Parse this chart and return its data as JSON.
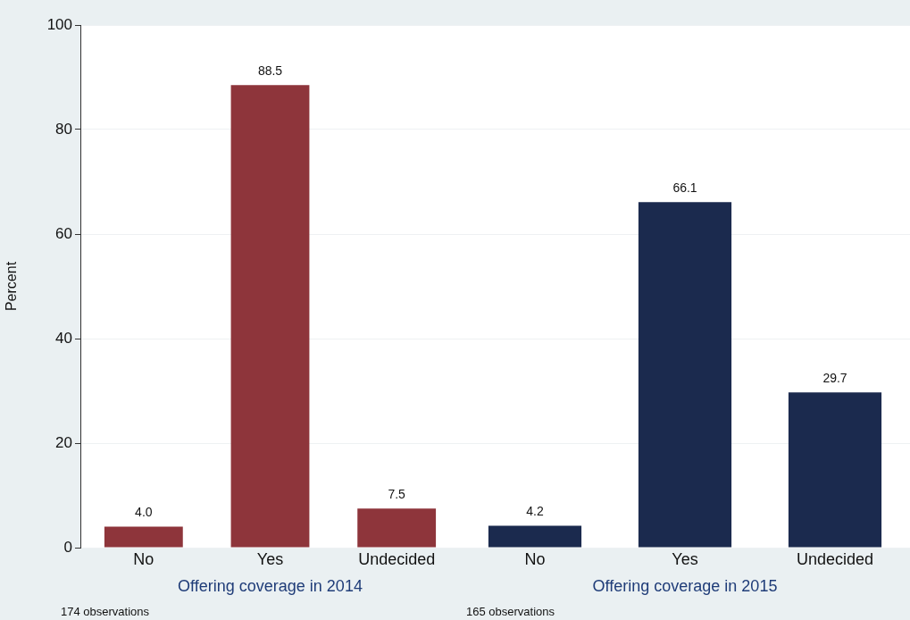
{
  "chart_data": [
    {
      "type": "bar",
      "categories": [
        "No",
        "Yes",
        "Undecided"
      ],
      "values": [
        4.0,
        88.5,
        7.5
      ],
      "color": "#8e353b",
      "xlabel": "Offering coverage in 2014",
      "ylabel": "Percent",
      "ylim": [
        0,
        100
      ],
      "yticks": [
        0,
        20,
        40,
        60,
        80,
        100
      ],
      "grid": "y",
      "value_labels": [
        "4.0",
        "88.5",
        "7.5"
      ],
      "annotations": [
        "174 observations"
      ]
    },
    {
      "type": "bar",
      "categories": [
        "No",
        "Yes",
        "Undecided"
      ],
      "values": [
        4.2,
        66.1,
        29.7
      ],
      "color": "#1b2a4e",
      "xlabel": "Offering coverage in 2015",
      "ylim": [
        0,
        100
      ],
      "yticks": [
        0,
        20,
        40,
        60,
        80,
        100
      ],
      "grid": "y",
      "value_labels": [
        "4.2",
        "66.1",
        "29.7"
      ],
      "tick_labels": "x",
      "annotations": [
        "165 observations"
      ]
    }
  ]
}
